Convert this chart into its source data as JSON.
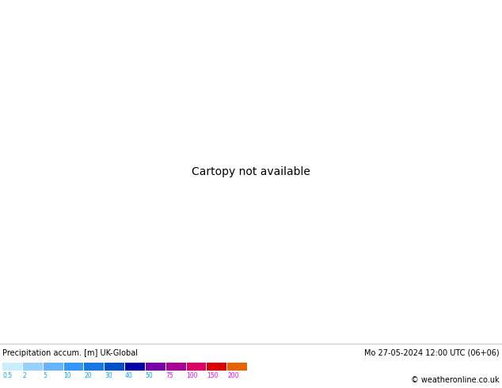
{
  "title_left": "Precipitation accum. [m] UK-Global",
  "title_right": "Mo 27-05-2024 12:00 UTC (06+06)",
  "copyright": "© weatheronline.co.uk",
  "legend_values": [
    "0.5",
    "2",
    "5",
    "10",
    "20",
    "30",
    "40",
    "50",
    "75",
    "100",
    "150",
    "200"
  ],
  "legend_colors": [
    "#c8eeff",
    "#96d2ff",
    "#64b4ff",
    "#3296ff",
    "#1478e6",
    "#0050c8",
    "#0000aa",
    "#7800aa",
    "#aa0096",
    "#dc0064",
    "#dc0000",
    "#e66400"
  ],
  "bg_color": "#c8f0a0",
  "sea_color": "#c8d8c8",
  "bottom_bar_color": "#ffffff",
  "fig_width": 6.34,
  "fig_height": 4.9,
  "bottom_text_color": "#000000",
  "cyan_vals": [
    "0.5",
    "2",
    "5",
    "10",
    "20",
    "30",
    "40",
    "50"
  ],
  "magenta_vals": [
    "75",
    "100",
    "150",
    "200"
  ],
  "cyan_color": "#00aaff",
  "magenta_color": "#ff00ff"
}
